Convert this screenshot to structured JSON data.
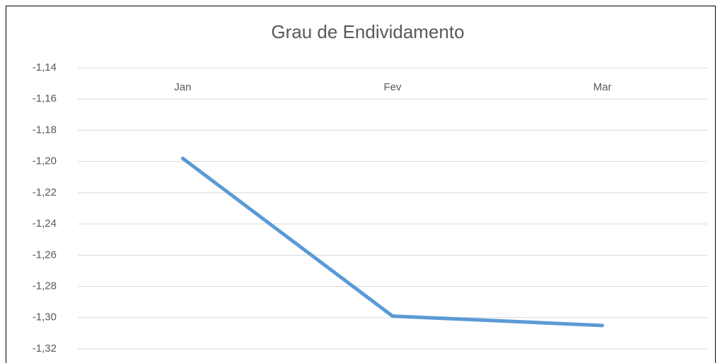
{
  "chart_data": {
    "type": "line",
    "title": "Grau de Endividamento",
    "categories": [
      "Jan",
      "Fev",
      "Mar"
    ],
    "series": [
      {
        "name": "Grau de Endividamento",
        "color": "#5b9bd5",
        "values": [
          -1.198,
          -1.299,
          -1.305
        ]
      }
    ],
    "ylim": [
      -1.32,
      -1.14
    ],
    "yticks": [
      {
        "value": -1.14,
        "label": "-1,14"
      },
      {
        "value": -1.16,
        "label": "-1,16"
      },
      {
        "value": -1.18,
        "label": "-1,18"
      },
      {
        "value": -1.2,
        "label": "-1,20"
      },
      {
        "value": -1.22,
        "label": "-1,22"
      },
      {
        "value": -1.24,
        "label": "-1,24"
      },
      {
        "value": -1.26,
        "label": "-1,26"
      },
      {
        "value": -1.28,
        "label": "-1,28"
      },
      {
        "value": -1.3,
        "label": "-1,30"
      },
      {
        "value": -1.32,
        "label": "-1,32"
      }
    ],
    "grid": true
  }
}
